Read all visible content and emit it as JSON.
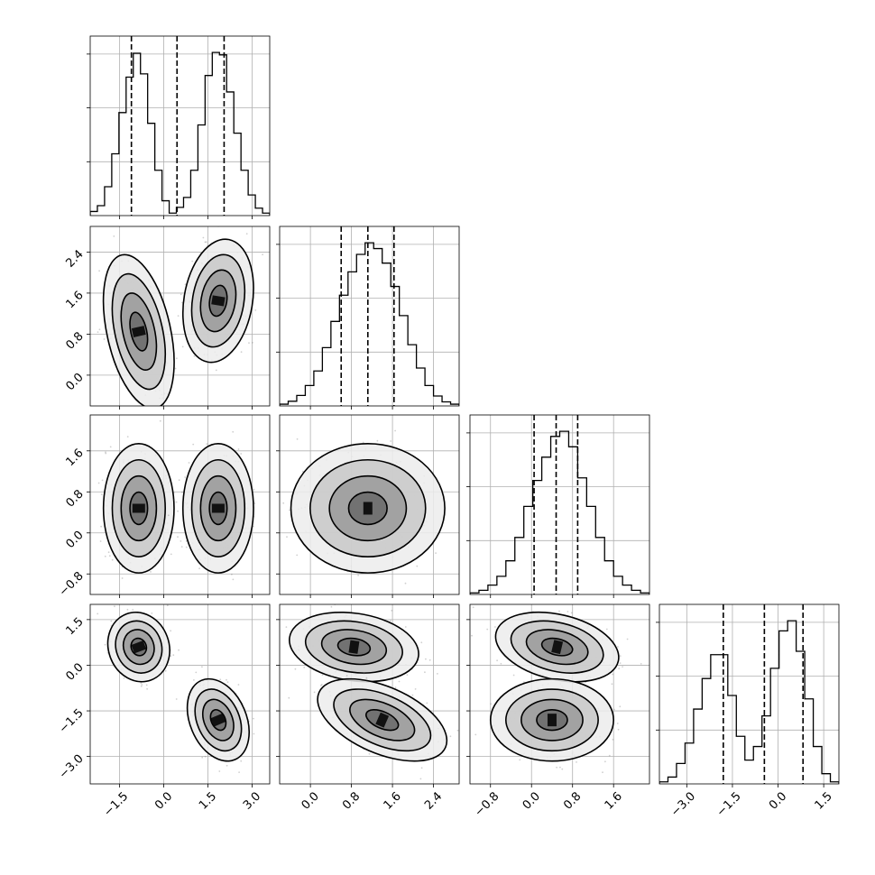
{
  "chart_data": {
    "type": "scatter",
    "subtype": "corner",
    "parameters": 4,
    "grid": true,
    "quantiles": [
      0.16,
      0.5,
      0.84
    ],
    "axes": [
      {
        "range": [
          -2.5,
          3.6
        ],
        "ticks": [
          -1.5,
          0.0,
          1.5,
          3.0
        ],
        "tick_labels": [
          "−1.5",
          "0.0",
          "1.5",
          "3.0"
        ]
      },
      {
        "range": [
          -0.6,
          2.9
        ],
        "ticks": [
          0.0,
          0.8,
          1.6,
          2.4
        ],
        "tick_labels": [
          "0.0",
          "0.8",
          "1.6",
          "2.4"
        ]
      },
      {
        "range": [
          -1.2,
          2.3
        ],
        "ticks": [
          -0.8,
          0.0,
          0.8,
          1.6
        ],
        "tick_labels": [
          "−0.8",
          "0.0",
          "0.8",
          "1.6"
        ]
      },
      {
        "range": [
          -3.9,
          2.0
        ],
        "ticks": [
          -3.0,
          -1.5,
          0.0,
          1.5
        ],
        "tick_labels": [
          "−3.0",
          "−1.5",
          "0.0",
          "1.5"
        ]
      }
    ],
    "histograms": [
      {
        "param": 0,
        "quantile_values": [
          -1.1,
          0.45,
          2.05
        ],
        "bin_range": [
          -2.5,
          3.6
        ],
        "counts": [
          0.5,
          1.2,
          3.5,
          7.5,
          12.5,
          16.8,
          19.7,
          17.2,
          11.2,
          5.5,
          1.8,
          0.3,
          1.0,
          2.2,
          5.5,
          11.0,
          17.0,
          19.8,
          19.5,
          15.0,
          10.0,
          5.5,
          2.5,
          0.9,
          0.3
        ]
      },
      {
        "param": 1,
        "quantile_values": [
          0.6,
          1.12,
          1.63
        ],
        "bin_range": [
          -0.6,
          2.9
        ],
        "counts": [
          0.3,
          0.8,
          1.8,
          3.5,
          6.0,
          10.0,
          14.5,
          19.0,
          23.0,
          26.0,
          28.0,
          27.0,
          24.5,
          20.5,
          15.5,
          10.5,
          6.5,
          3.5,
          1.7,
          0.7,
          0.3
        ]
      },
      {
        "param": 2,
        "quantile_values": [
          0.05,
          0.48,
          0.9
        ],
        "bin_range": [
          -1.2,
          2.3
        ],
        "counts": [
          0.3,
          0.8,
          1.8,
          3.5,
          6.5,
          11.0,
          17.0,
          22.0,
          26.5,
          30.5,
          31.5,
          28.5,
          22.5,
          17.0,
          11.0,
          6.5,
          3.5,
          1.8,
          0.8,
          0.3
        ]
      },
      {
        "param": 3,
        "quantile_values": [
          -1.8,
          -0.45,
          0.82
        ],
        "bin_range": [
          -3.9,
          2.0
        ],
        "counts": [
          0.3,
          1.0,
          3.0,
          6.0,
          11.0,
          15.5,
          19.0,
          19.0,
          13.0,
          7.0,
          3.5,
          5.5,
          10.0,
          17.0,
          22.5,
          24.0,
          19.5,
          12.5,
          5.5,
          1.5,
          0.3
        ]
      }
    ],
    "pairs": [
      {
        "x_param": 0,
        "y_param": 1,
        "modes": [
          {
            "x": -0.85,
            "y": 0.85,
            "sx": 0.4,
            "sy": 0.5,
            "rho": -0.4
          },
          {
            "x": 1.85,
            "y": 1.45,
            "sx": 0.4,
            "sy": 0.4,
            "rho": 0.2
          }
        ]
      },
      {
        "x_param": 0,
        "y_param": 2,
        "modes": [
          {
            "x": -0.85,
            "y": 0.48,
            "sx": 0.4,
            "sy": 0.42,
            "rho": 0.0
          },
          {
            "x": 1.85,
            "y": 0.48,
            "sx": 0.4,
            "sy": 0.42,
            "rho": 0.0
          }
        ]
      },
      {
        "x_param": 1,
        "y_param": 2,
        "modes": [
          {
            "x": 1.12,
            "y": 0.48,
            "sx": 0.5,
            "sy": 0.42,
            "rho": 0.0
          }
        ]
      },
      {
        "x_param": 0,
        "y_param": 3,
        "modes": [
          {
            "x": -0.85,
            "y": 0.6,
            "sx": 0.35,
            "sy": 0.38,
            "rho": -0.1
          },
          {
            "x": 1.85,
            "y": -1.8,
            "sx": 0.35,
            "sy": 0.45,
            "rho": -0.3
          }
        ]
      },
      {
        "x_param": 1,
        "y_param": 3,
        "modes": [
          {
            "x": 0.85,
            "y": 0.6,
            "sx": 0.42,
            "sy": 0.38,
            "rho": -0.2
          },
          {
            "x": 1.4,
            "y": -1.8,
            "sx": 0.42,
            "sy": 0.45,
            "rho": -0.5
          }
        ]
      },
      {
        "x_param": 2,
        "y_param": 3,
        "modes": [
          {
            "x": 0.5,
            "y": 0.6,
            "sx": 0.4,
            "sy": 0.38,
            "rho": -0.3
          },
          {
            "x": 0.4,
            "y": -1.8,
            "sx": 0.4,
            "sy": 0.45,
            "rho": 0.0
          }
        ]
      }
    ]
  }
}
